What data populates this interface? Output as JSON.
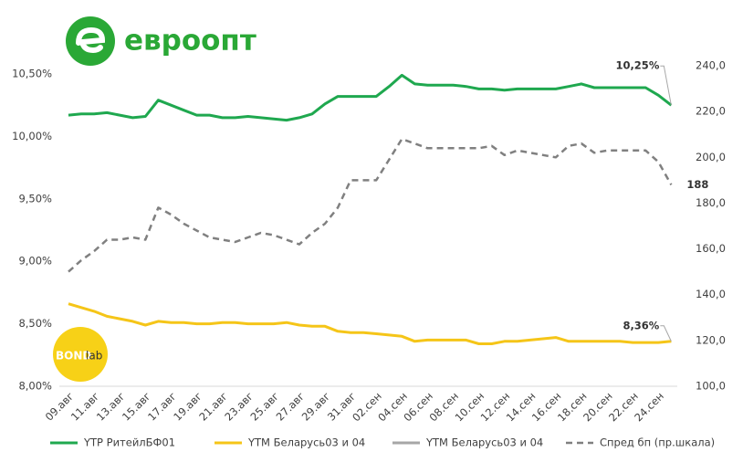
{
  "chart_data": {
    "type": "line",
    "logo": "евроопт",
    "watermark": [
      "BOND",
      "lab"
    ],
    "categories": [
      "09.авг",
      null,
      "11.авг",
      null,
      "13.авг",
      null,
      "15.авг",
      null,
      "17.авг",
      null,
      "19.авг",
      null,
      "21.авг",
      null,
      "23.авг",
      null,
      "25.авг",
      null,
      "27.авг",
      null,
      "29.авг",
      null,
      "31.авг",
      null,
      "02.сен",
      null,
      "04.сен",
      null,
      "06.сен",
      null,
      "08.сен",
      null,
      "10.сен",
      null,
      "12.сен",
      null,
      "14.сен",
      null,
      "16.сен",
      null,
      "18.сен",
      null,
      "20.сен",
      null,
      "22.сен",
      null,
      "24.сен",
      null
    ],
    "ylim": [
      8,
      10.5
    ],
    "yticks": [
      {
        "value": 8,
        "label": "8,00%"
      },
      {
        "value": 8.5,
        "label": "8,50%"
      },
      {
        "value": 9,
        "label": "9,00%"
      },
      {
        "value": 9.5,
        "label": "9,50%"
      },
      {
        "value": 10,
        "label": "10,00%"
      },
      {
        "value": 10.5,
        "label": "10,50%"
      }
    ],
    "y2lim": [
      100,
      240
    ],
    "y2ticks": [
      {
        "value": 100,
        "label": "100,0"
      },
      {
        "value": 120,
        "label": "120,0"
      },
      {
        "value": 140,
        "label": "140,0"
      },
      {
        "value": 160,
        "label": "160,0"
      },
      {
        "value": 180,
        "label": "180,0"
      },
      {
        "value": 200,
        "label": "200,0"
      },
      {
        "value": 220,
        "label": "220,0"
      },
      {
        "value": 240,
        "label": "240,0"
      }
    ],
    "legend": "bottom",
    "series": [
      {
        "name": "YTP РитейлБФ01",
        "color": "#1fa84f",
        "line_style": "solid",
        "values": [
          10.17,
          10.18,
          10.18,
          10.19,
          10.17,
          10.15,
          10.16,
          10.29,
          10.25,
          10.21,
          10.17,
          10.17,
          10.15,
          10.15,
          10.16,
          10.15,
          10.14,
          10.13,
          10.15,
          10.18,
          10.26,
          10.32,
          10.32,
          10.32,
          10.32,
          10.4,
          10.49,
          10.42,
          10.41,
          10.41,
          10.41,
          10.4,
          10.38,
          10.38,
          10.37,
          10.38,
          10.38,
          10.38,
          10.38,
          10.4,
          10.42,
          10.39,
          10.39,
          10.39,
          10.39,
          10.39,
          10.33,
          10.25
        ],
        "value_labels": [
          null,
          null,
          null,
          null,
          null,
          null,
          null,
          null,
          null,
          null,
          null,
          null,
          null,
          null,
          null,
          null,
          null,
          null,
          null,
          null,
          null,
          null,
          null,
          null,
          null,
          null,
          null,
          null,
          null,
          null,
          null,
          null,
          null,
          null,
          null,
          null,
          null,
          null,
          null,
          null,
          null,
          null,
          null,
          null,
          null,
          null,
          null,
          "10,25%"
        ]
      },
      {
        "name": "YTM Беларусь03 и 04",
        "color": "#f5c518",
        "line_style": "solid",
        "values": [
          8.66,
          8.63,
          8.6,
          8.56,
          8.54,
          8.52,
          8.49,
          8.52,
          8.51,
          8.51,
          8.5,
          8.5,
          8.51,
          8.51,
          8.5,
          8.5,
          8.5,
          8.51,
          8.49,
          8.48,
          8.48,
          8.44,
          8.43,
          8.43,
          8.42,
          8.41,
          8.4,
          8.36,
          8.37,
          8.37,
          8.37,
          8.37,
          8.34,
          8.34,
          8.36,
          8.36,
          8.37,
          8.38,
          8.39,
          8.36,
          8.36,
          8.36,
          8.36,
          8.36,
          8.35,
          8.35,
          8.35,
          8.36
        ],
        "value_labels": [
          null,
          null,
          null,
          null,
          null,
          null,
          null,
          null,
          null,
          null,
          null,
          null,
          null,
          null,
          null,
          null,
          null,
          null,
          null,
          null,
          null,
          null,
          null,
          null,
          null,
          null,
          null,
          null,
          null,
          null,
          null,
          null,
          null,
          null,
          null,
          null,
          null,
          null,
          null,
          null,
          null,
          null,
          null,
          null,
          null,
          null,
          null,
          "8,36%"
        ]
      },
      {
        "name": "YTM Беларусь03 и 04",
        "color": "#a6a6a6",
        "line_style": "solid",
        "values": [
          null,
          null,
          null,
          null,
          null,
          null,
          null,
          null,
          null,
          null,
          null,
          null,
          null,
          null,
          null,
          null,
          null,
          null,
          null,
          null,
          null,
          null,
          null,
          null,
          null,
          null,
          null,
          null,
          null,
          null,
          null,
          null,
          null,
          null,
          null,
          null,
          null,
          null,
          null,
          null,
          null,
          null,
          null,
          null,
          null,
          null,
          null,
          null
        ]
      },
      {
        "name": "Спред бп (пр.шкала)",
        "color": "#808080",
        "line_style": "dashed",
        "axis": "y2",
        "values": [
          150,
          155,
          159,
          164,
          164,
          165,
          164,
          178,
          175,
          171,
          168,
          165,
          164,
          163,
          165,
          167,
          166,
          164,
          162,
          167,
          171,
          178,
          190,
          190,
          190,
          199,
          208,
          206,
          204,
          204,
          204,
          204,
          204,
          205,
          201,
          203,
          202,
          201,
          200,
          205,
          206,
          202,
          203,
          203,
          203,
          203,
          198,
          188
        ],
        "label_last": true
      }
    ]
  }
}
